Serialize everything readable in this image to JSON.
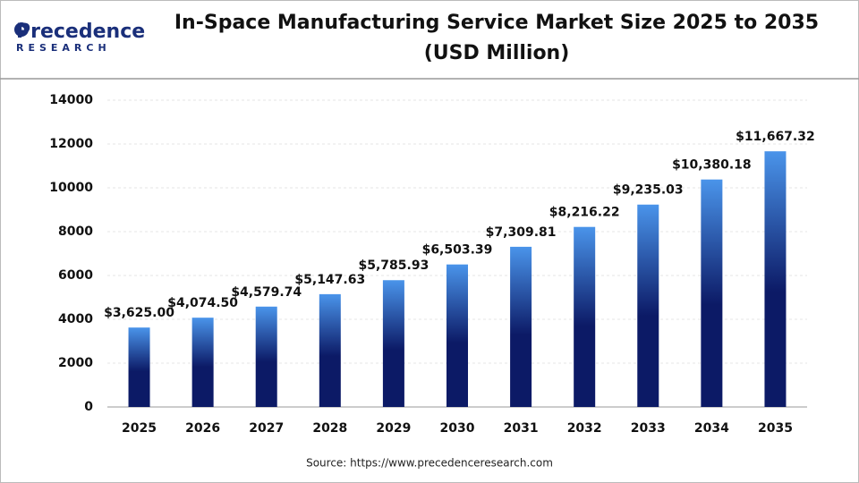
{
  "brand": "Precedence",
  "brand_sub": "RESEARCH",
  "chart_data": {
    "type": "bar",
    "title": [
      "In-Space Manufacturing Service Market Size 2025 to 2035",
      "(USD Million)"
    ],
    "source": "Source: https://www.precedenceresearch.com",
    "categories": [
      "2025",
      "2026",
      "2027",
      "2028",
      "2029",
      "2030",
      "2031",
      "2032",
      "2033",
      "2034",
      "2035"
    ],
    "values": [
      3625.0,
      4074.5,
      4579.74,
      5147.63,
      5785.93,
      6503.39,
      7309.81,
      8216.22,
      9235.03,
      10380.18,
      11667.32
    ],
    "value_labels": [
      "$3,625.00",
      "$4,074.50",
      "$4,579.74",
      "$5,147.63",
      "$5,785.93",
      "$6,503.39",
      "$7,309.81",
      "$8,216.22",
      "$9,235.03",
      "$10,380.18",
      "$11,667.32"
    ],
    "color": "#0c1a66",
    "ylim": [
      0,
      14000
    ],
    "yticks": [
      0,
      2000,
      4000,
      6000,
      8000,
      10000,
      12000,
      14000
    ],
    "grid": true
  }
}
